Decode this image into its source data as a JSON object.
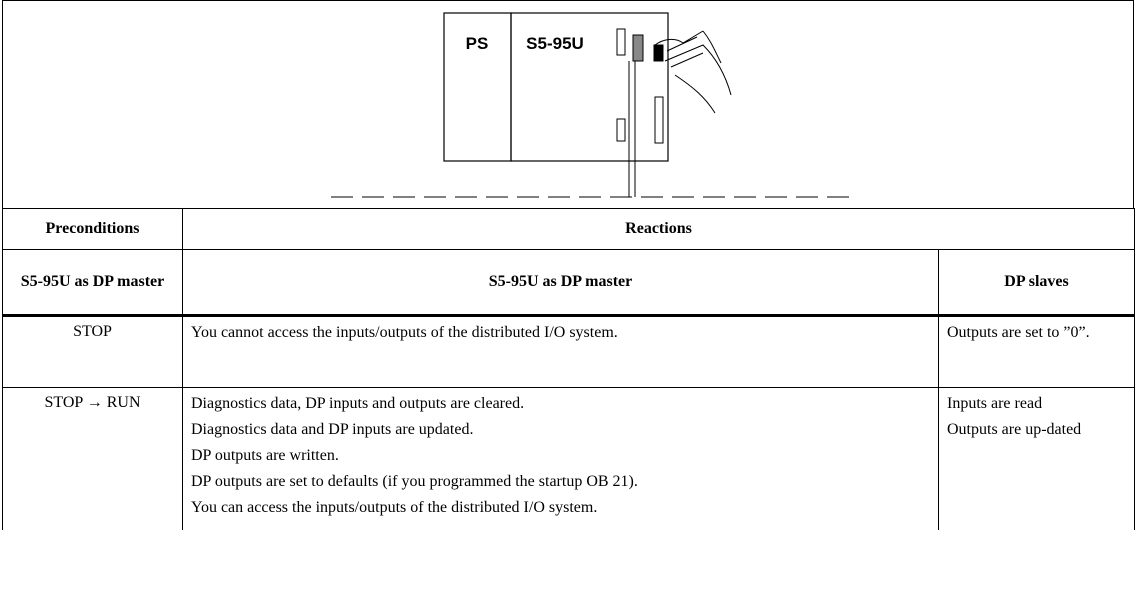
{
  "figure": {
    "labels": [
      "PS",
      "S5-95U"
    ]
  },
  "table": {
    "header": [
      "Preconditions",
      "Reactions"
    ],
    "subheader": [
      "S5-95U as DP master",
      "S5-95U as DP master",
      "DP slaves"
    ],
    "rows": [
      {
        "precondition": "STOP",
        "reactions": [
          "You cannot access the inputs/outputs of the distributed I/O system."
        ],
        "slaves": [
          "Outputs are set to ”0”."
        ]
      },
      {
        "precondition": "STOP → RUN",
        "reactions": [
          "Diagnostics data, DP inputs and outputs are cleared.",
          "Diagnostics data and DP inputs are updated.",
          "DP outputs are written.",
          "DP outputs are set to defaults (if you programmed the startup OB 21).",
          "You can access the inputs/outputs of the distributed I/O system."
        ],
        "slaves": [
          "Inputs are read",
          "Outputs are up-dated"
        ]
      }
    ]
  }
}
